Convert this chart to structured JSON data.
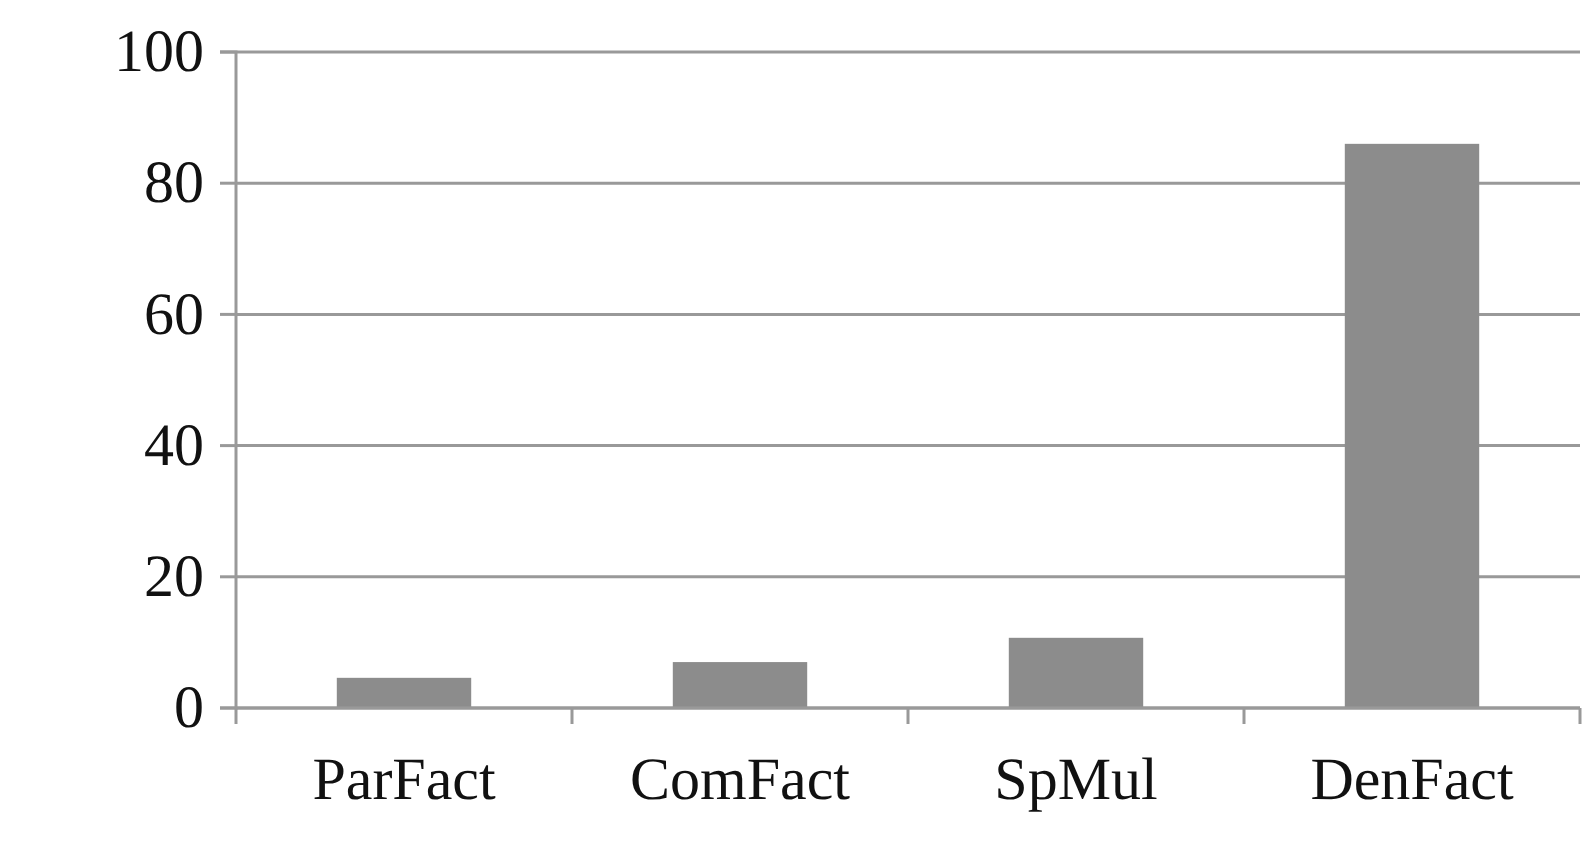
{
  "chart_data": {
    "type": "bar",
    "categories": [
      "ParFact",
      "ComFact",
      "SpMul",
      "DenFact"
    ],
    "values": [
      4.6,
      7,
      10.7,
      86
    ],
    "color": "#8c8c8c",
    "ylim": [
      0,
      100
    ],
    "yticks": [
      0,
      20,
      40,
      60,
      80,
      100
    ],
    "grid": "y"
  }
}
